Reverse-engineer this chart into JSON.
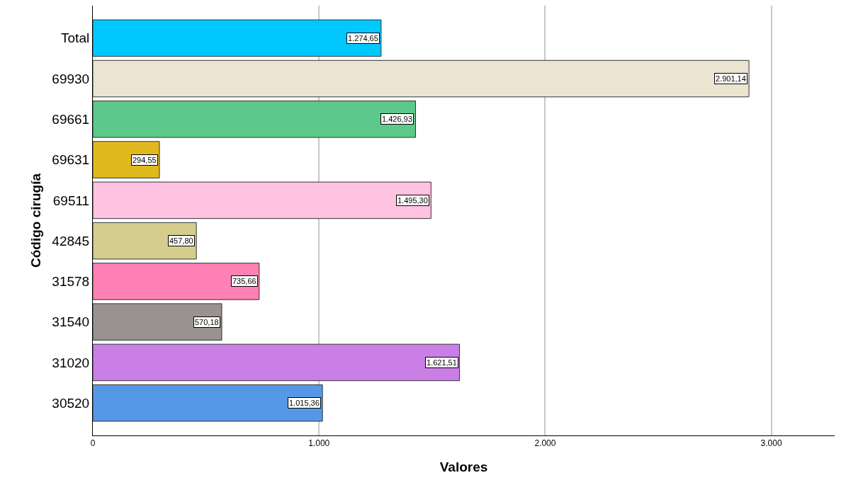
{
  "chart_data": {
    "type": "bar",
    "orientation": "horizontal",
    "xlabel": "Valores",
    "ylabel": "Código cirugía",
    "categories": [
      "Total",
      "69930",
      "69661",
      "69631",
      "69511",
      "42845",
      "31578",
      "31540",
      "31020",
      "30520"
    ],
    "values": [
      1274.65,
      2901.14,
      1426.93,
      294.55,
      1495.3,
      457.8,
      735.66,
      570.18,
      1621.51,
      1015.36
    ],
    "value_labels": [
      "1.274,65",
      "2.901,14",
      "1.426,93",
      "294,55",
      "1.495,30",
      "457,80",
      "735,66",
      "570,18",
      "1.621,51",
      "1.015,36"
    ],
    "colors": [
      "#00c8ff",
      "#ebe4d0",
      "#5cc98a",
      "#e0b91e",
      "#ffc2e0",
      "#d4cd8e",
      "#ff80b4",
      "#999290",
      "#c97fe6",
      "#5599e6"
    ],
    "xlim": [
      0,
      3280
    ],
    "xticks": [
      0,
      {
        "value": 1000,
        "label": "1.000"
      },
      {
        "value": 2000,
        "label": "2.000"
      },
      {
        "value": 3000,
        "label": "3.000"
      }
    ],
    "grid": "x",
    "legend": false
  }
}
